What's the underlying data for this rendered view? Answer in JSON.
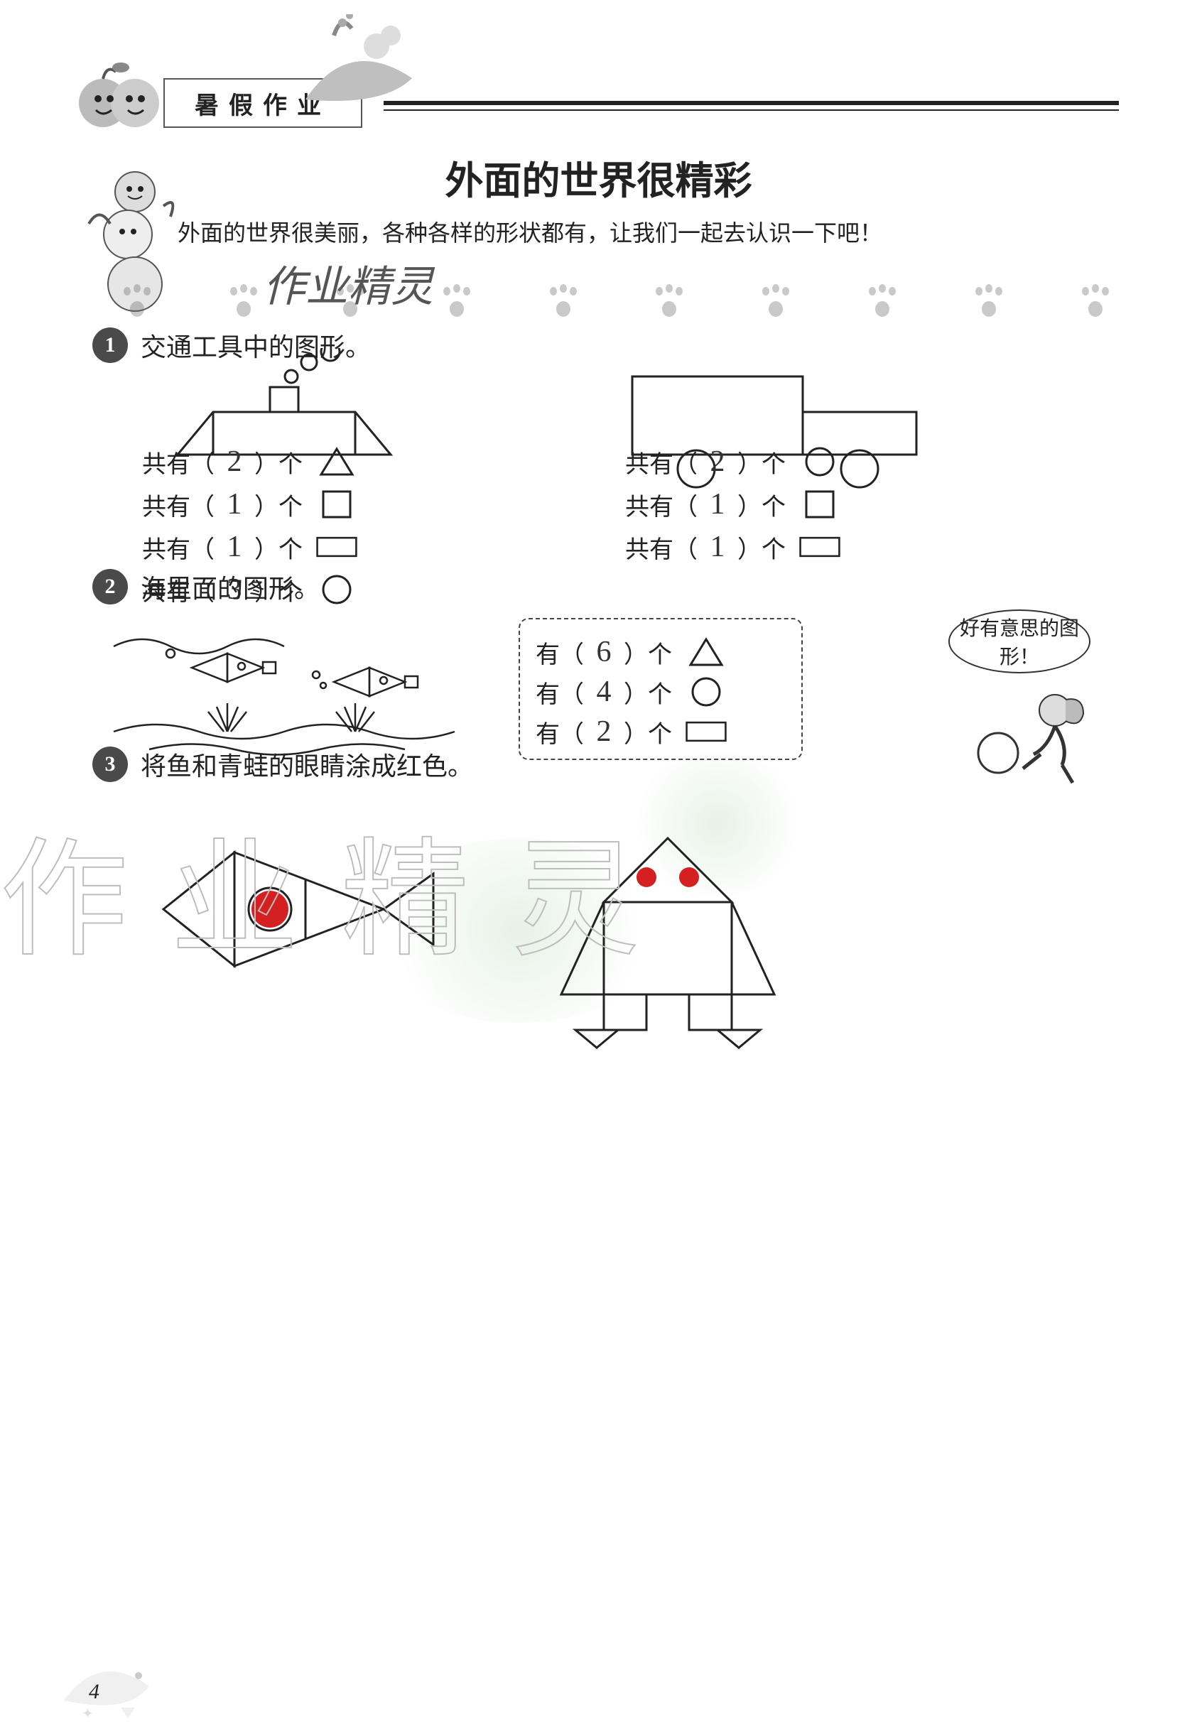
{
  "colors": {
    "ink": "#222222",
    "badge_bg": "#4a4a4a",
    "badge_fg": "#ffffff",
    "handwriting": "#333333",
    "red_fill": "#d42020",
    "watermark_stroke": "#bdbdbd",
    "box_border": "#444444",
    "paw": "#666666"
  },
  "header": {
    "box_label": "暑假作业"
  },
  "page_title": "外面的世界很精彩",
  "intro_text": "外面的世界很美丽，各种各样的形状都有，让我们一起去认识一下吧！",
  "watermark_script": "作业精灵",
  "watermark_outline": "作业精灵",
  "page_number": "4",
  "questions": {
    "q1": {
      "badge": "1",
      "title": "交通工具中的图形。",
      "left_figure": {
        "type": "boat",
        "shapes": {
          "triangles": 2,
          "squares": 1,
          "rectangles": 1,
          "circles": 3
        },
        "colors": {
          "stroke": "#222222",
          "fill": "none"
        }
      },
      "right_figure": {
        "type": "truck",
        "shapes": {
          "circles": 2,
          "squares": 1,
          "rectangles": 1
        },
        "colors": {
          "stroke": "#222222",
          "fill": "none"
        }
      },
      "left_rows": [
        {
          "label_a": "共有（",
          "value": "2",
          "label_b": "）个",
          "shape": "triangle"
        },
        {
          "label_a": "共有（",
          "value": "1",
          "label_b": "）个",
          "shape": "square"
        },
        {
          "label_a": "共有（",
          "value": "1",
          "label_b": "）个",
          "shape": "rectangle"
        },
        {
          "label_a": "共有（",
          "value": "3",
          "label_b": "）个",
          "shape": "circle"
        }
      ],
      "right_rows": [
        {
          "label_a": "共有（",
          "value": "2",
          "label_b": "）个",
          "shape": "circle"
        },
        {
          "label_a": "共有（",
          "value": "1",
          "label_b": "）个",
          "shape": "square"
        },
        {
          "label_a": "共有（",
          "value": "1",
          "label_b": "）个",
          "shape": "rectangle"
        }
      ]
    },
    "q2": {
      "badge": "2",
      "title": "海里面的图形。",
      "bubble_text": "好有意思的图形！",
      "rows": [
        {
          "label_a": "有（",
          "value": "6",
          "label_b": "）个",
          "shape": "triangle"
        },
        {
          "label_a": "有（",
          "value": "4",
          "label_b": "）个",
          "shape": "circle"
        },
        {
          "label_a": "有（",
          "value": "2",
          "label_b": "）个",
          "shape": "rectangle"
        }
      ],
      "sea_drawing": {
        "fish_count": 2,
        "bubble_count_approx": 4,
        "seaweed_count": 2,
        "stroke": "#222222"
      }
    },
    "q3": {
      "badge": "3",
      "title": "将鱼和青蛙的眼睛涂成红色。",
      "fish": {
        "eye_color": "#d42020",
        "outline": "#222222"
      },
      "frog": {
        "eye_color": "#d42020",
        "outline": "#222222",
        "eye_count": 2
      }
    }
  }
}
